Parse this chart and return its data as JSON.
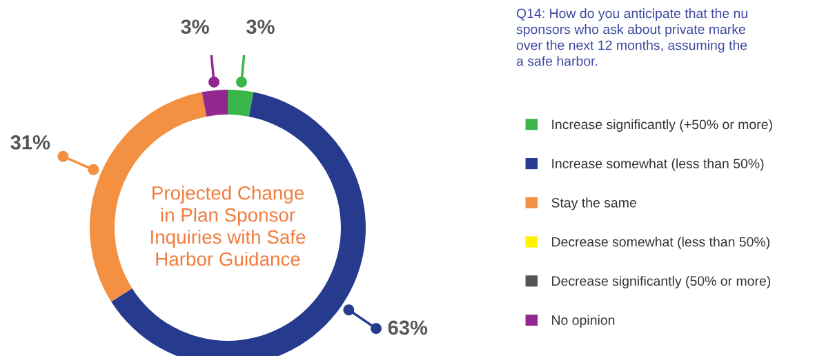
{
  "chart_data": {
    "type": "donut",
    "title": "Q14: How do you anticipate that the nu\nsponsors who ask about private marke\nover the next 12 months, assuming the\na safe harbor.",
    "annotations": [
      "Projected Change\nin Plan Sponsor\nInquiries with Safe\nHarbor Guidance"
    ],
    "categories": [
      "Increase significantly (+50% or more)",
      "Increase somewhat (less than 50%)",
      "Stay the same",
      "Decrease somewhat (less than 50%)",
      "Decrease significantly (50% or more)",
      "No opinion"
    ],
    "values": [
      3,
      63,
      31,
      0,
      0,
      3
    ],
    "value_labels": [
      "3%",
      "63%",
      "31%",
      null,
      null,
      "3%"
    ],
    "colors": [
      "#3bb54a",
      "#263a8e",
      "#f39041",
      "#fff200",
      "#555555",
      "#92278f"
    ],
    "legend": "right"
  }
}
